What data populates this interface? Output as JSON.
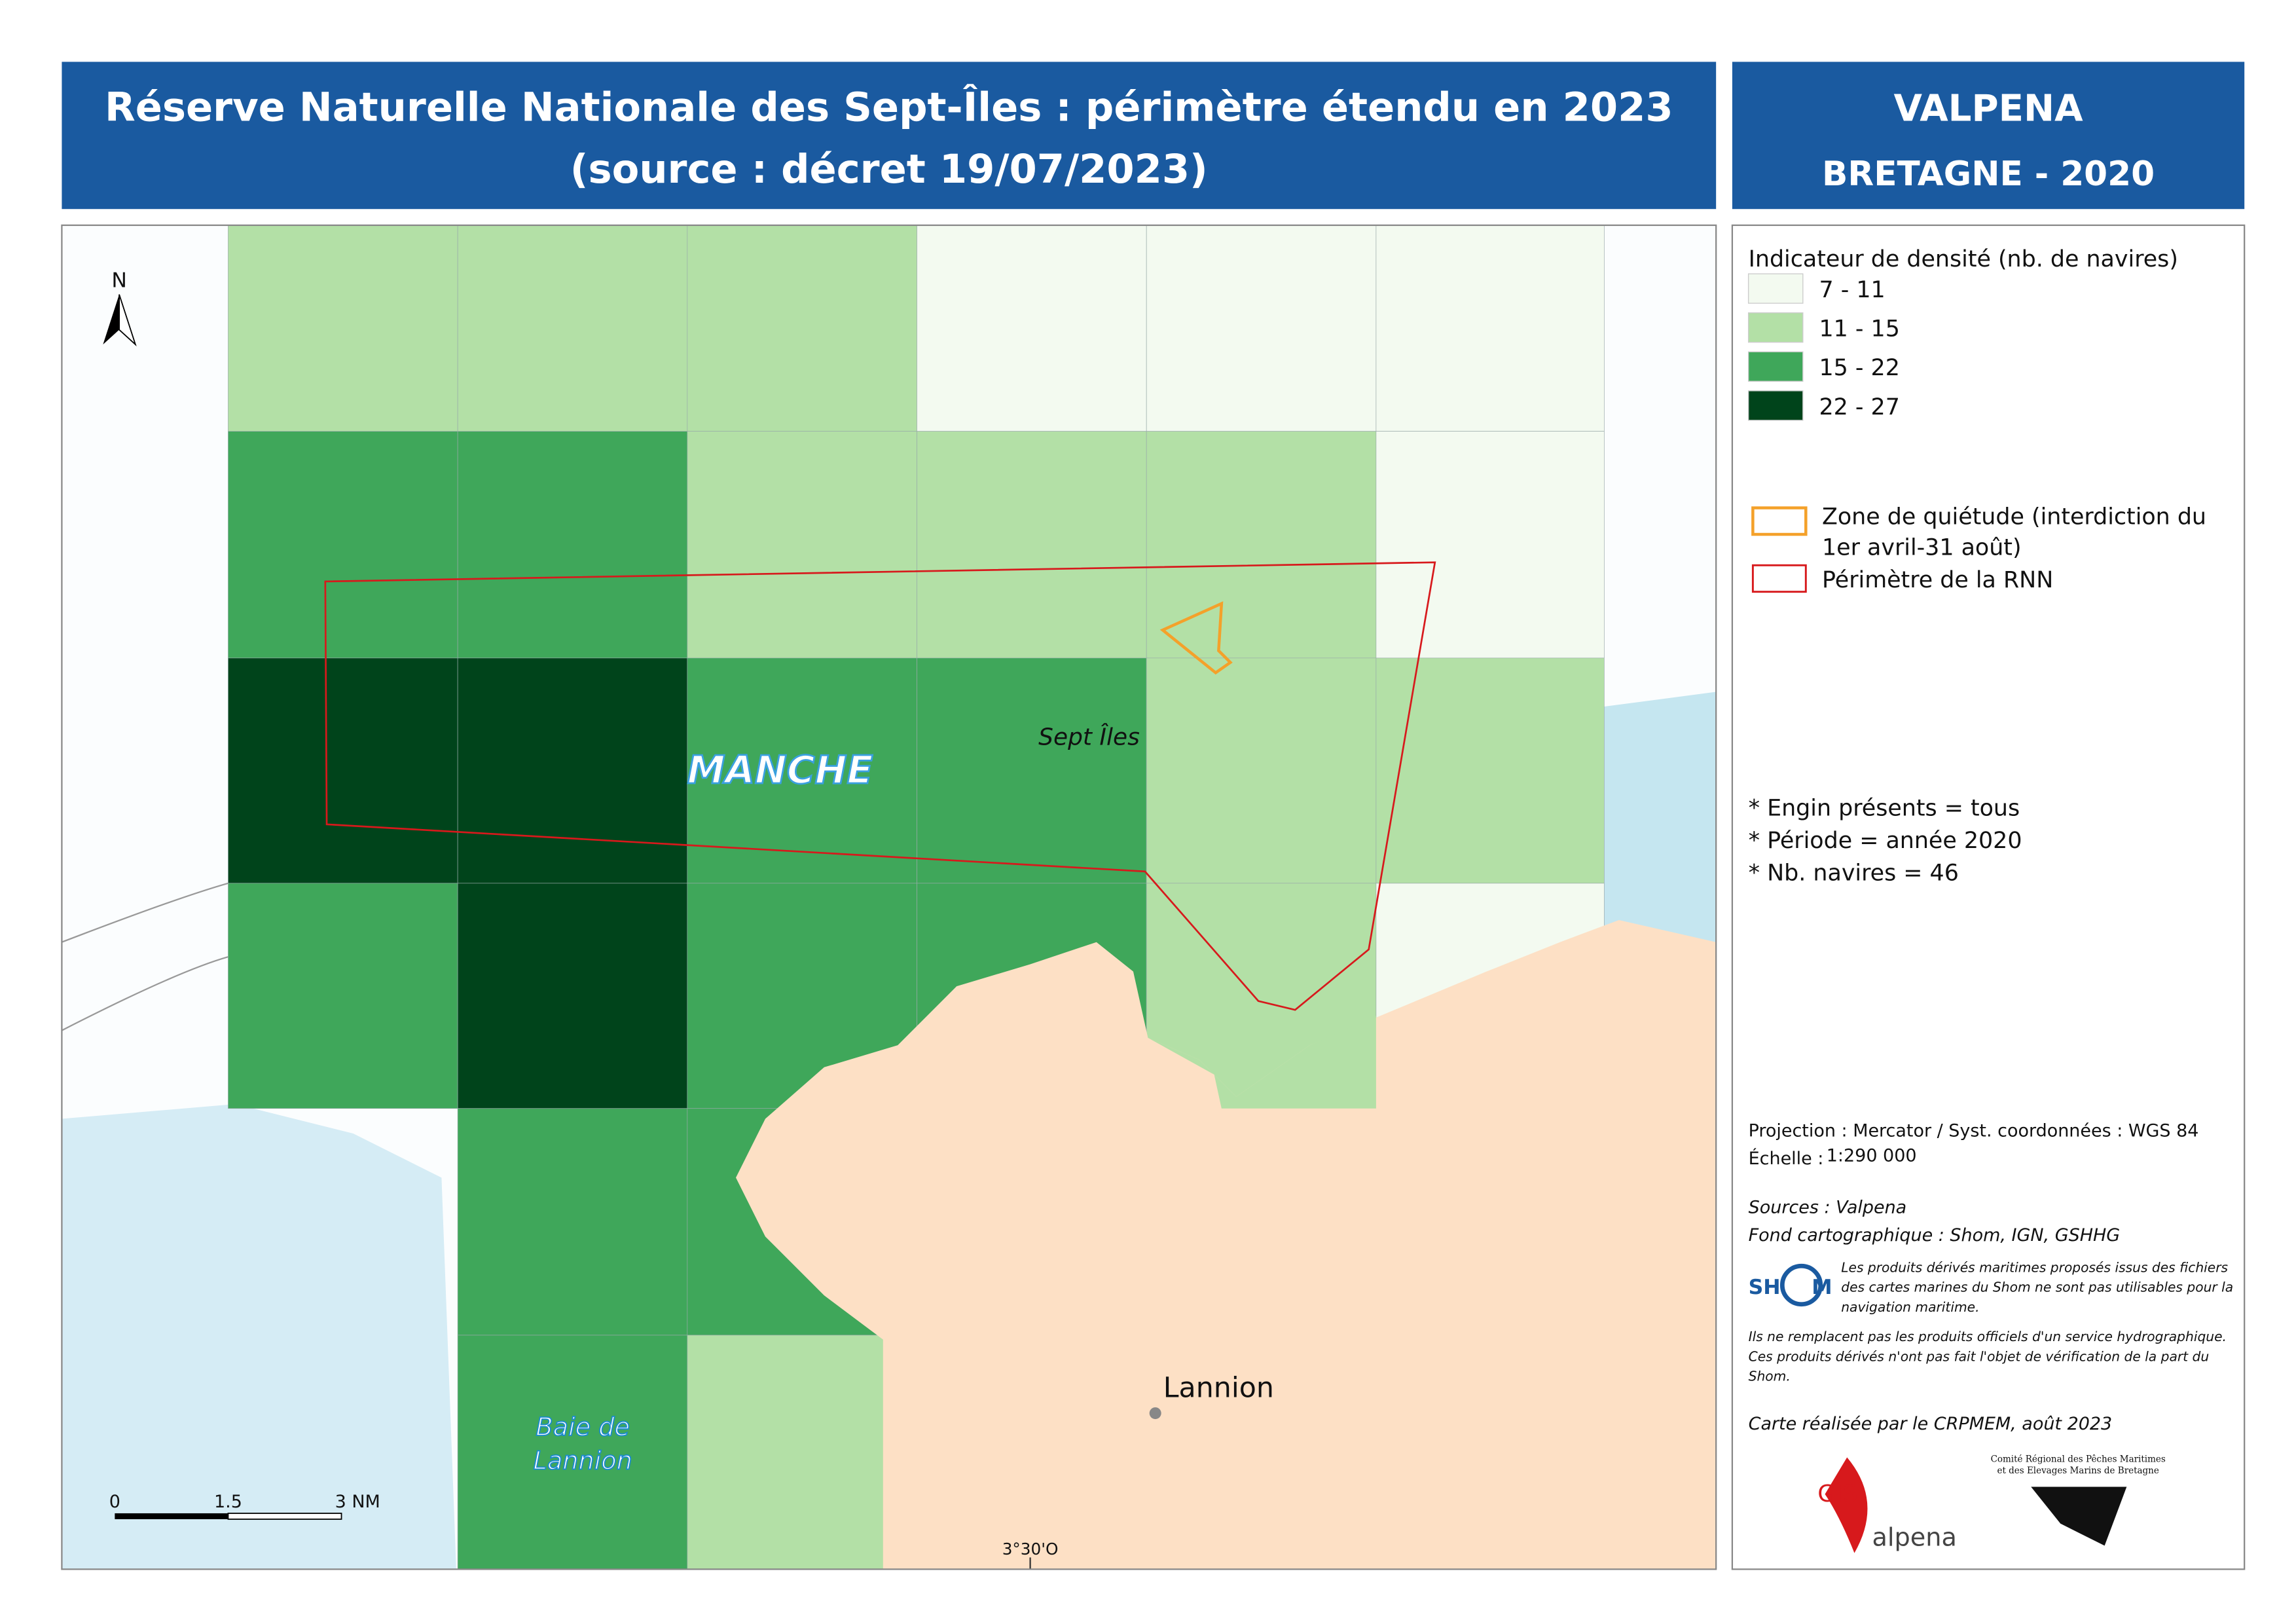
{
  "header": {
    "title_lines": [
      "Réserve Naturelle Nationale des Sept-Îles : périmètre étendu en 2023",
      "(source : décret 19/07/2023)"
    ],
    "right_lines": [
      "VALPENA",
      "BRETAGNE - 2020"
    ]
  },
  "legend": {
    "title": "Indicateur de densité (nb. de navires)",
    "density": [
      {
        "label": "7 - 11",
        "color": "#f3faf0"
      },
      {
        "label": "11 - 15",
        "color": "#b3e0a6"
      },
      {
        "label": "15 - 22",
        "color": "#3fa75a"
      },
      {
        "label": "22 - 27",
        "color": "#00441b"
      }
    ],
    "zone_quietude": {
      "lines": [
        "Zone de quiétude (interdiction du",
        "1er avril-31 août)"
      ],
      "color": "#f4a12a"
    },
    "rnn": {
      "label": "Périmètre de la RNN",
      "color": "#d7191c"
    }
  },
  "notes": [
    "* Engin présents = tous",
    "* Période = année 2020",
    "* Nb. navires =  46"
  ],
  "info": {
    "projection": "Projection : Mercator / Syst. coordonnées : WGS 84",
    "scale_label": "Échelle :",
    "scale_value": "1:290 000",
    "sources": "Sources : Valpena",
    "basemap": "Fond cartographique : Shom, IGN, GSHHG",
    "shom_note": [
      "Les produits dérivés maritimes proposés issus des fichiers",
      "des cartes marines du Shom ne sont pas utilisables pour la",
      "navigation maritime."
    ],
    "disclaimer": [
      "Ils ne remplacent pas les produits officiels d'un service hydrographique.",
      "Ces produits dérivés n'ont pas fait l'objet de vérification de la part du",
      "Shom."
    ],
    "credit": "Carte réalisée par le CRPMEM, août 2023"
  },
  "logos": {
    "shom": [
      "SH",
      "M"
    ],
    "gis": [
      "GIS",
      "alpena"
    ],
    "comite": [
      "Comité Régional des Pêches Maritimes",
      "et des Elevages Marins de Bretagne"
    ]
  },
  "map": {
    "north": "N",
    "sea": "MANCHE",
    "islands": "Sept Îles",
    "town": "Lannion",
    "bay": [
      "Baie de",
      "Lannion"
    ],
    "longitude": "3°30'O",
    "scale_bar": [
      "0",
      "1.5",
      "3 NM"
    ]
  }
}
